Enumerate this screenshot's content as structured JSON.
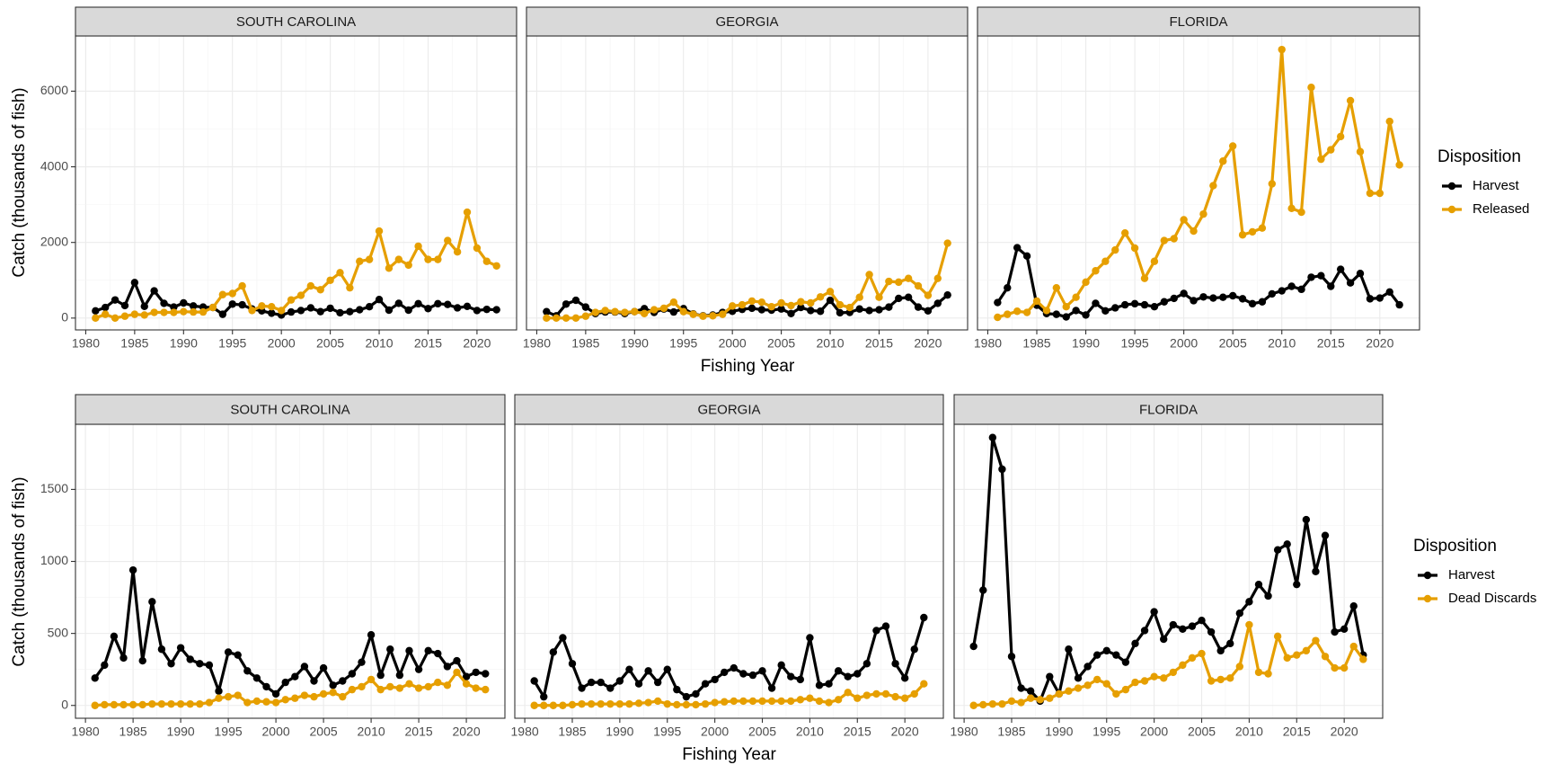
{
  "chart_data": [
    {
      "type": "line",
      "x_label": "Fishing Year",
      "y_label": "Catch (thousands of fish)",
      "legend_title": "Disposition",
      "x": [
        1981,
        1982,
        1983,
        1984,
        1985,
        1986,
        1987,
        1988,
        1989,
        1990,
        1991,
        1992,
        1993,
        1994,
        1995,
        1996,
        1997,
        1998,
        1999,
        2000,
        2001,
        2002,
        2003,
        2004,
        2005,
        2006,
        2007,
        2008,
        2009,
        2010,
        2011,
        2012,
        2013,
        2014,
        2015,
        2016,
        2017,
        2018,
        2019,
        2020,
        2021,
        2022
      ],
      "xlim": [
        1978.95,
        2024.05
      ],
      "xticks": [
        1980,
        1985,
        1990,
        1995,
        2000,
        2005,
        2010,
        2015,
        2020
      ],
      "ylim": [
        -313,
        7460
      ],
      "yticks": [
        0,
        2000,
        4000,
        6000
      ],
      "grid": true,
      "facets": [
        {
          "title": "SOUTH CAROLINA",
          "series": [
            {
              "name": "Harvest",
              "color": "#000000",
              "values": [
                190,
                280,
                480,
                330,
                940,
                310,
                720,
                390,
                290,
                400,
                320,
                290,
                280,
                100,
                370,
                350,
                240,
                190,
                130,
                80,
                160,
                200,
                270,
                170,
                260,
                140,
                170,
                220,
                300,
                490,
                210,
                390,
                210,
                380,
                250,
                380,
                360,
                270,
                310,
                200,
                230,
                220
              ]
            },
            {
              "name": "Released",
              "color": "#e69f00",
              "values": [
                0,
                100,
                0,
                50,
                100,
                80,
                150,
                150,
                150,
                170,
                160,
                160,
                280,
                620,
                650,
                850,
                200,
                320,
                300,
                200,
                480,
                600,
                850,
                750,
                1000,
                1200,
                800,
                1500,
                1550,
                2300,
                1320,
                1550,
                1400,
                1900,
                1550,
                1550,
                2050,
                1750,
                2800,
                1850,
                1500,
                1380
              ]
            }
          ]
        },
        {
          "title": "GEORGIA",
          "series": [
            {
              "name": "Harvest",
              "color": "#000000",
              "values": [
                170,
                60,
                370,
                470,
                290,
                120,
                160,
                160,
                120,
                170,
                250,
                150,
                240,
                160,
                250,
                110,
                60,
                80,
                150,
                180,
                230,
                260,
                220,
                210,
                240,
                120,
                280,
                200,
                180,
                470,
                140,
                150,
                240,
                200,
                220,
                290,
                520,
                550,
                290,
                190,
                390,
                610
              ]
            },
            {
              "name": "Released",
              "color": "#e69f00",
              "values": [
                0,
                0,
                0,
                0,
                50,
                150,
                200,
                170,
                150,
                170,
                120,
                220,
                260,
                420,
                170,
                100,
                50,
                60,
                100,
                320,
                350,
                450,
                420,
                300,
                400,
                330,
                430,
                400,
                560,
                700,
                350,
                280,
                550,
                1150,
                550,
                970,
                950,
                1050,
                850,
                600,
                1050,
                1980
              ]
            }
          ]
        },
        {
          "title": "FLORIDA",
          "series": [
            {
              "name": "Harvest",
              "color": "#000000",
              "values": [
                410,
                800,
                1860,
                1640,
                340,
                120,
                100,
                30,
                200,
                80,
                390,
                190,
                270,
                350,
                380,
                350,
                300,
                430,
                520,
                650,
                460,
                560,
                530,
                550,
                590,
                510,
                380,
                430,
                640,
                720,
                840,
                760,
                1080,
                1120,
                840,
                1290,
                930,
                1180,
                510,
                530,
                690,
                350
              ]
            },
            {
              "name": "Released",
              "color": "#e69f00",
              "values": [
                20,
                100,
                180,
                150,
                450,
                200,
                800,
                300,
                550,
                950,
                1250,
                1500,
                1800,
                2250,
                1850,
                1050,
                1500,
                2050,
                2100,
                2600,
                2300,
                2750,
                3500,
                4150,
                4550,
                2200,
                2280,
                2380,
                3550,
                7100,
                2900,
                2800,
                6100,
                4200,
                4450,
                4800,
                5750,
                4400,
                3300,
                3300,
                5200,
                4050
              ]
            }
          ]
        }
      ]
    },
    {
      "type": "line",
      "x_label": "Fishing Year",
      "y_label": "Catch (thousands of fish)",
      "legend_title": "Disposition",
      "x": [
        1981,
        1982,
        1983,
        1984,
        1985,
        1986,
        1987,
        1988,
        1989,
        1990,
        1991,
        1992,
        1993,
        1994,
        1995,
        1996,
        1997,
        1998,
        1999,
        2000,
        2001,
        2002,
        2003,
        2004,
        2005,
        2006,
        2007,
        2008,
        2009,
        2010,
        2011,
        2012,
        2013,
        2014,
        2015,
        2016,
        2017,
        2018,
        2019,
        2020,
        2021,
        2022
      ],
      "xlim": [
        1978.95,
        2024.05
      ],
      "xticks": [
        1980,
        1985,
        1990,
        1995,
        2000,
        2005,
        2010,
        2015,
        2020
      ],
      "ylim": [
        -89,
        1952
      ],
      "yticks": [
        0,
        500,
        1000,
        1500
      ],
      "grid": true,
      "facets": [
        {
          "title": "SOUTH CAROLINA",
          "series": [
            {
              "name": "Harvest",
              "color": "#000000",
              "values": [
                190,
                280,
                480,
                330,
                940,
                310,
                720,
                390,
                290,
                400,
                320,
                290,
                280,
                100,
                370,
                350,
                240,
                190,
                130,
                80,
                160,
                200,
                270,
                170,
                260,
                140,
                170,
                220,
                300,
                490,
                210,
                390,
                210,
                380,
                250,
                380,
                360,
                270,
                310,
                200,
                230,
                220
              ]
            },
            {
              "name": "Dead Discards",
              "color": "#e69f00",
              "values": [
                0,
                5,
                5,
                5,
                5,
                5,
                10,
                10,
                10,
                10,
                10,
                10,
                20,
                50,
                60,
                70,
                20,
                30,
                25,
                20,
                40,
                50,
                70,
                60,
                80,
                90,
                60,
                110,
                130,
                180,
                110,
                130,
                120,
                150,
                120,
                130,
                160,
                140,
                230,
                150,
                120,
                110
              ]
            }
          ]
        },
        {
          "title": "GEORGIA",
          "series": [
            {
              "name": "Harvest",
              "color": "#000000",
              "values": [
                170,
                60,
                370,
                470,
                290,
                120,
                160,
                160,
                120,
                170,
                250,
                150,
                240,
                160,
                250,
                110,
                60,
                80,
                150,
                180,
                230,
                260,
                220,
                210,
                240,
                120,
                280,
                200,
                180,
                470,
                140,
                150,
                240,
                200,
                220,
                290,
                520,
                550,
                290,
                190,
                390,
                610
              ]
            },
            {
              "name": "Dead Discards",
              "color": "#e69f00",
              "values": [
                0,
                0,
                0,
                0,
                5,
                10,
                10,
                10,
                10,
                10,
                10,
                15,
                20,
                30,
                10,
                5,
                5,
                5,
                10,
                20,
                25,
                30,
                30,
                30,
                30,
                30,
                30,
                30,
                40,
                50,
                30,
                20,
                40,
                90,
                50,
                70,
                80,
                80,
                60,
                50,
                80,
                150
              ]
            }
          ]
        },
        {
          "title": "FLORIDA",
          "series": [
            {
              "name": "Harvest",
              "color": "#000000",
              "values": [
                410,
                800,
                1860,
                1640,
                340,
                120,
                100,
                30,
                200,
                80,
                390,
                190,
                270,
                350,
                380,
                350,
                300,
                430,
                520,
                650,
                460,
                560,
                530,
                550,
                590,
                510,
                380,
                430,
                640,
                720,
                840,
                760,
                1080,
                1120,
                840,
                1290,
                930,
                1180,
                510,
                530,
                690,
                350
              ]
            },
            {
              "name": "Dead Discards",
              "color": "#e69f00",
              "values": [
                0,
                5,
                10,
                10,
                30,
                20,
                50,
                40,
                50,
                80,
                100,
                120,
                140,
                180,
                150,
                80,
                110,
                160,
                170,
                200,
                190,
                230,
                280,
                330,
                360,
                170,
                180,
                190,
                270,
                560,
                230,
                220,
                480,
                330,
                350,
                380,
                450,
                340,
                260,
                260,
                410,
                320
              ]
            }
          ]
        }
      ]
    }
  ]
}
